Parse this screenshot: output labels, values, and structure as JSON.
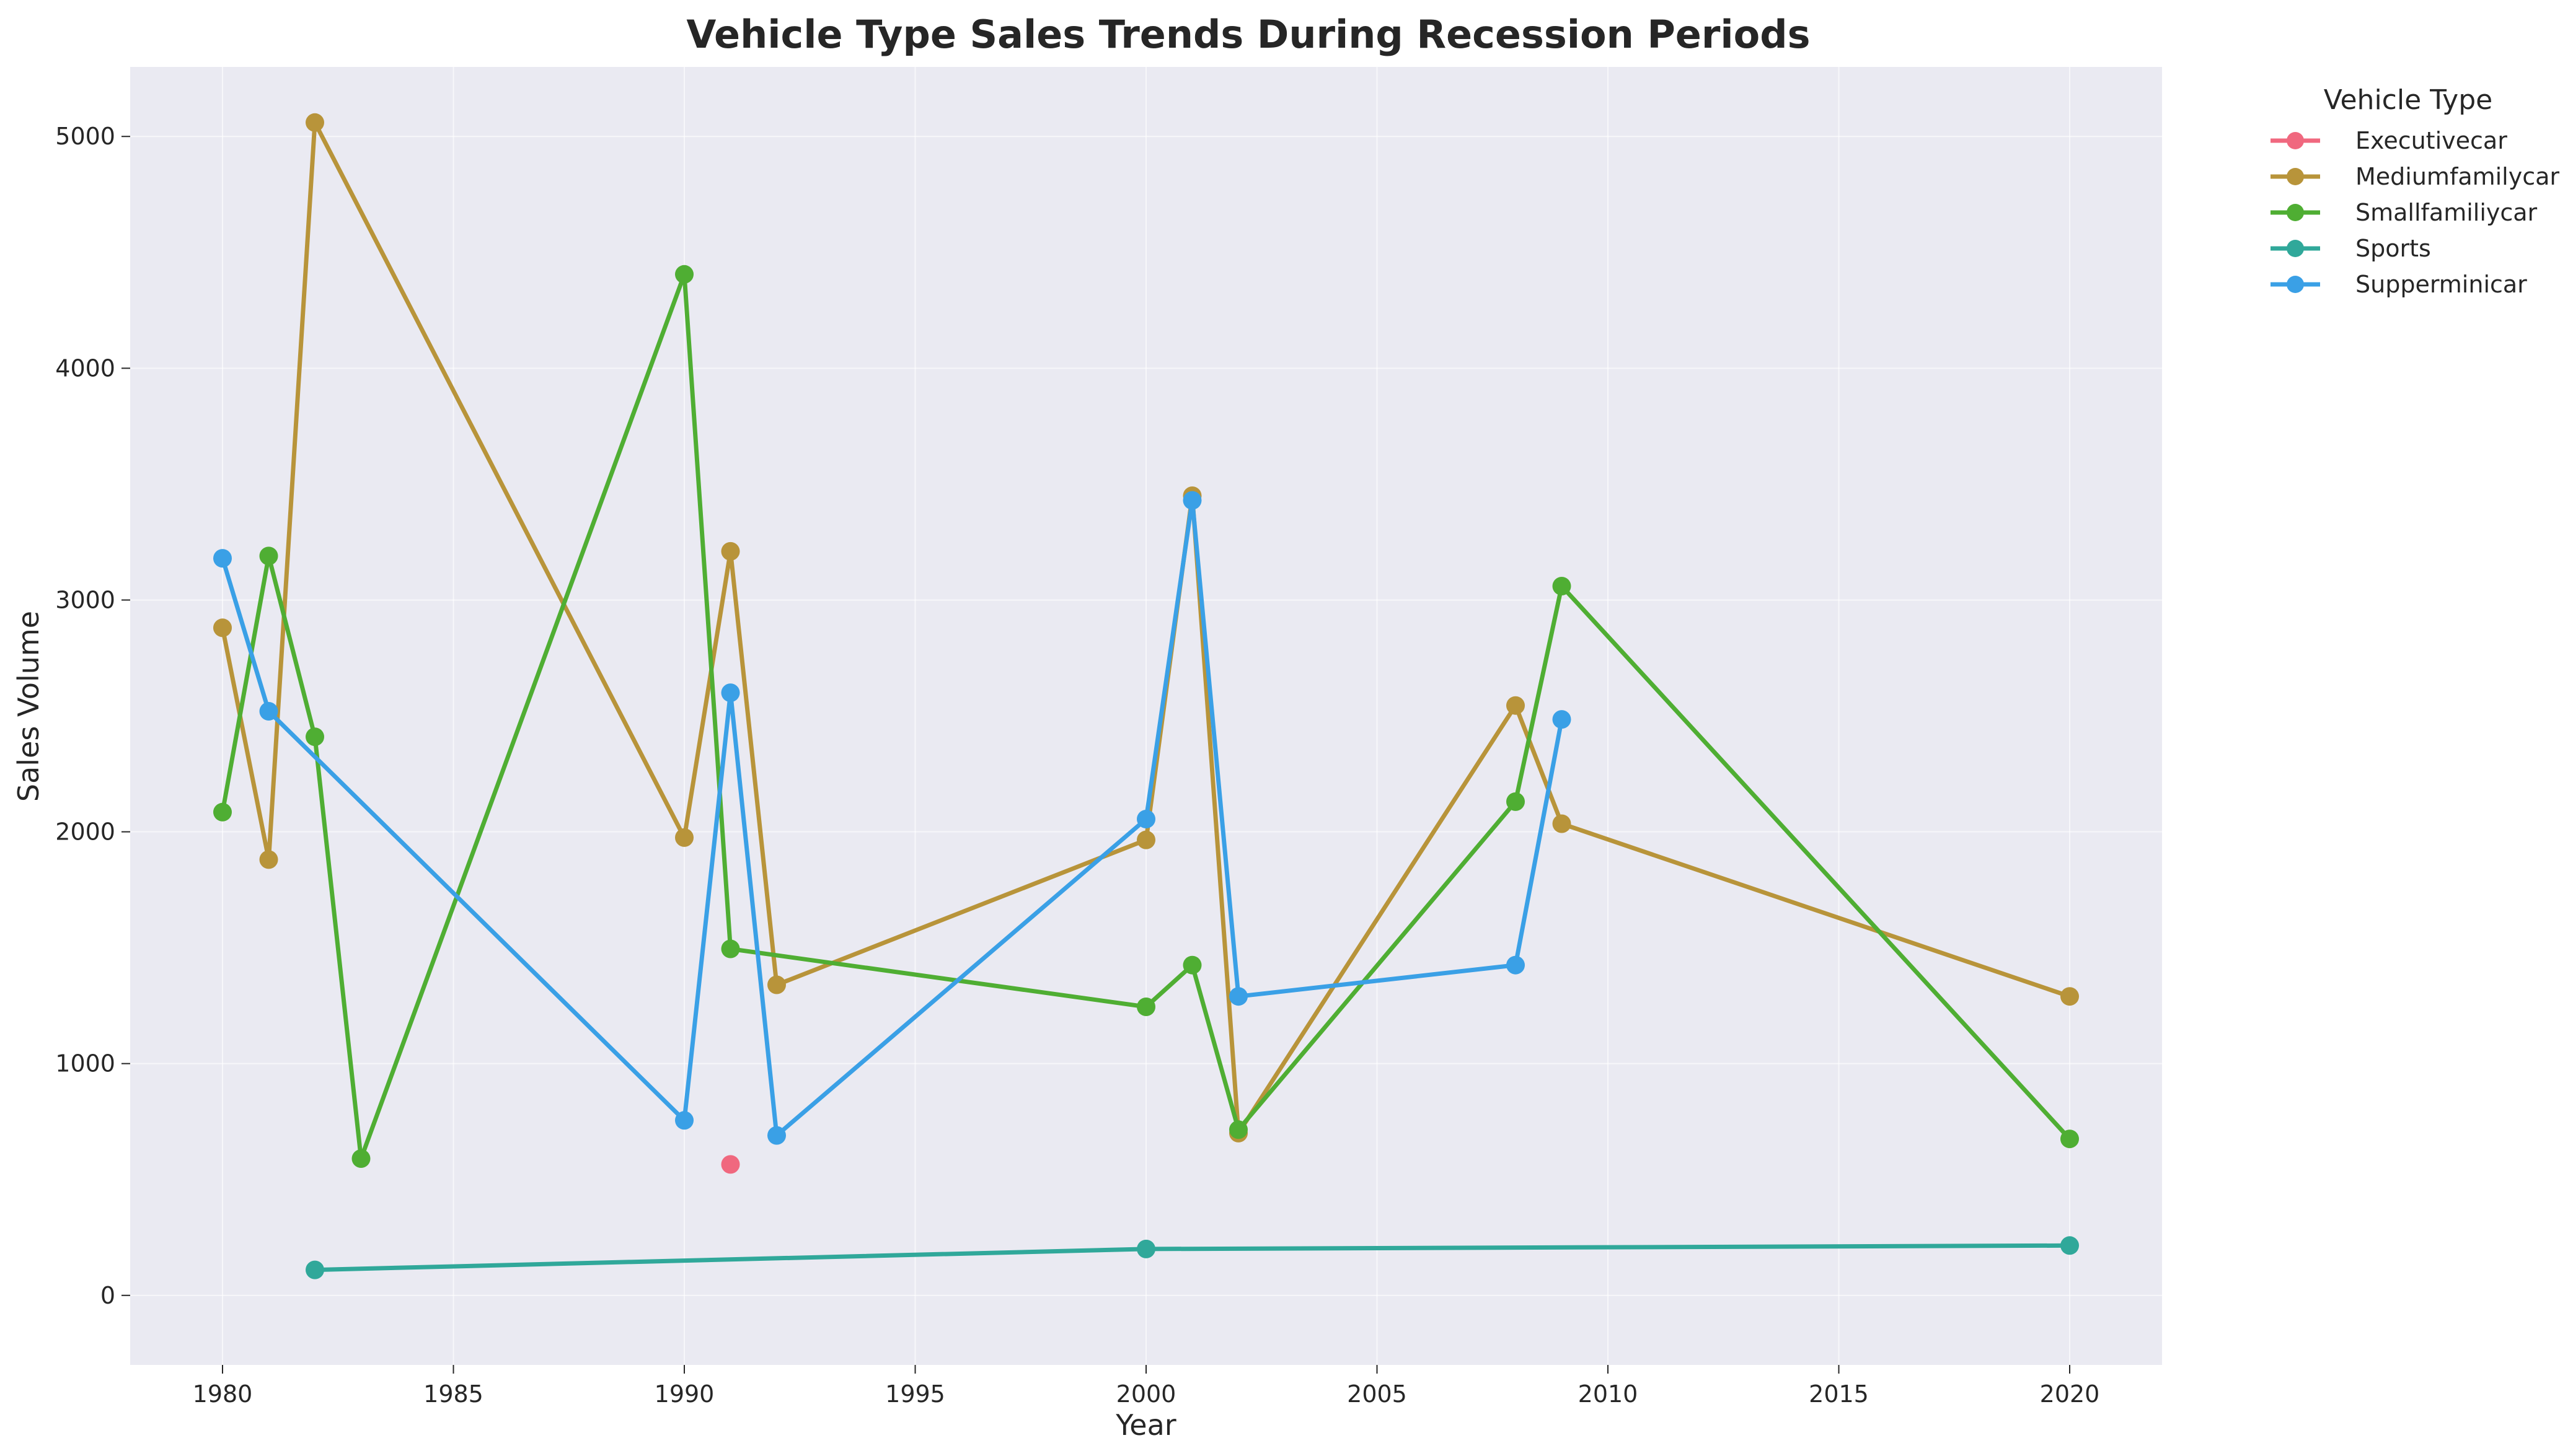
{
  "chart_data": {
    "type": "line",
    "title": "Vehicle Type Sales Trends During Recession Periods",
    "xlabel": "Year",
    "ylabel": "Sales Volume",
    "xlim": [
      1978,
      2022
    ],
    "ylim": [
      -300,
      5300
    ],
    "xticks": [
      1980,
      1985,
      1990,
      1995,
      2000,
      2005,
      2010,
      2015,
      2020
    ],
    "yticks": [
      0,
      1000,
      2000,
      3000,
      4000,
      5000
    ],
    "grid": true,
    "legend": {
      "title": "Vehicle Type",
      "placement": "outside-right"
    },
    "series": [
      {
        "name": "Executivecar",
        "color": "#f0687f",
        "points": [
          [
            1991,
            565
          ]
        ]
      },
      {
        "name": "Mediumfamilycar",
        "color": "#b8943a",
        "points": [
          [
            1980,
            2880
          ],
          [
            1981,
            1880
          ],
          [
            1982,
            5060
          ],
          [
            1990,
            1975
          ],
          [
            1991,
            3210
          ],
          [
            1992,
            1340
          ],
          [
            2000,
            1965
          ],
          [
            2001,
            3450
          ],
          [
            2002,
            700
          ],
          [
            2008,
            2545
          ],
          [
            2009,
            2035
          ],
          [
            2020,
            1290
          ]
        ]
      },
      {
        "name": "Smallfamiliycar",
        "color": "#4fae33",
        "points": [
          [
            1980,
            2085
          ],
          [
            1981,
            3190
          ],
          [
            1982,
            2410
          ],
          [
            1983,
            590
          ],
          [
            1990,
            4405
          ],
          [
            1991,
            1495
          ],
          [
            2000,
            1245
          ],
          [
            2001,
            1425
          ],
          [
            2002,
            715
          ],
          [
            2008,
            2130
          ],
          [
            2009,
            3060
          ],
          [
            2020,
            675
          ]
        ]
      },
      {
        "name": "Sports",
        "color": "#30a89a",
        "points": [
          [
            1982,
            110
          ],
          [
            2000,
            200
          ],
          [
            2020,
            215
          ]
        ]
      },
      {
        "name": "Supperminicar",
        "color": "#3aa0e6",
        "points": [
          [
            1980,
            3180
          ],
          [
            1981,
            2520
          ],
          [
            1990,
            755
          ],
          [
            1991,
            2600
          ],
          [
            1992,
            690
          ],
          [
            2000,
            2055
          ],
          [
            2001,
            3430
          ],
          [
            2002,
            1290
          ],
          [
            2008,
            1425
          ],
          [
            2009,
            2485
          ]
        ]
      }
    ]
  }
}
